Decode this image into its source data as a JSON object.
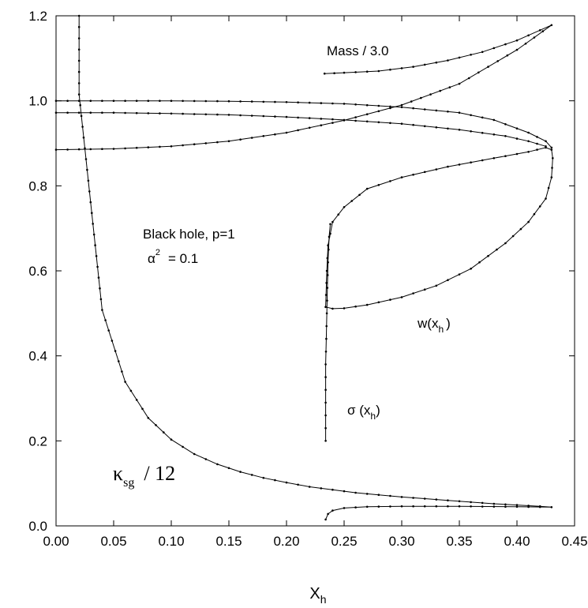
{
  "chart_data": {
    "type": "line",
    "title": "",
    "xlabel": "X",
    "xlabel_sub": "h",
    "ylabel": "",
    "xlim": [
      0.0,
      0.45
    ],
    "ylim": [
      0.0,
      1.2
    ],
    "xticks": [
      "0.00",
      "0.05",
      "0.10",
      "0.15",
      "0.20",
      "0.25",
      "0.30",
      "0.35",
      "0.40",
      "0.45"
    ],
    "yticks": [
      "0.0",
      "0.2",
      "0.4",
      "0.6",
      "0.8",
      "1.0",
      "1.2"
    ],
    "grid": false,
    "legend": "none",
    "annotations": {
      "mass": "Mass / 3.0",
      "black_hole": "Black hole, p=1",
      "alpha_sym": "α",
      "alpha_sup": "2",
      "alpha_val": "= 0.1",
      "w_main": "w(x",
      "w_sub": "h",
      "w_close": ")",
      "sigma_main": "σ (x",
      "sigma_sub": "h",
      "sigma_close": ")",
      "kappa_sym": "κ",
      "kappa_sub": "sg",
      "kappa_rest": "/ 12"
    },
    "series": [
      {
        "id": "mass",
        "points": [
          [
            0.233,
            1.064
          ],
          [
            0.25,
            1.066
          ],
          [
            0.28,
            1.07
          ],
          [
            0.31,
            1.08
          ],
          [
            0.34,
            1.095
          ],
          [
            0.37,
            1.115
          ],
          [
            0.4,
            1.142
          ],
          [
            0.43,
            1.178
          ],
          [
            0.4,
            1.12
          ],
          [
            0.35,
            1.04
          ],
          [
            0.3,
            0.99
          ],
          [
            0.25,
            0.954
          ],
          [
            0.2,
            0.925
          ],
          [
            0.15,
            0.905
          ],
          [
            0.1,
            0.893
          ],
          [
            0.05,
            0.887
          ],
          [
            0.0,
            0.885
          ]
        ]
      },
      {
        "id": "upper1",
        "points": [
          [
            0.0,
            1.0
          ],
          [
            0.05,
            1.0
          ],
          [
            0.1,
            1.0
          ],
          [
            0.15,
            0.999
          ],
          [
            0.2,
            0.997
          ],
          [
            0.25,
            0.993
          ],
          [
            0.3,
            0.985
          ],
          [
            0.35,
            0.972
          ],
          [
            0.38,
            0.955
          ],
          [
            0.41,
            0.925
          ],
          [
            0.425,
            0.905
          ],
          [
            0.43,
            0.89
          ]
        ]
      },
      {
        "id": "upper2",
        "points": [
          [
            0.0,
            0.972
          ],
          [
            0.05,
            0.972
          ],
          [
            0.1,
            0.97
          ],
          [
            0.15,
            0.967
          ],
          [
            0.2,
            0.962
          ],
          [
            0.25,
            0.955
          ],
          [
            0.3,
            0.946
          ],
          [
            0.35,
            0.932
          ],
          [
            0.39,
            0.917
          ],
          [
            0.41,
            0.905
          ],
          [
            0.425,
            0.893
          ]
        ]
      },
      {
        "id": "w",
        "points": [
          [
            0.234,
            0.515
          ],
          [
            0.24,
            0.511
          ],
          [
            0.25,
            0.512
          ],
          [
            0.27,
            0.52
          ],
          [
            0.3,
            0.538
          ],
          [
            0.33,
            0.565
          ],
          [
            0.36,
            0.605
          ],
          [
            0.39,
            0.665
          ],
          [
            0.41,
            0.715
          ],
          [
            0.425,
            0.77
          ],
          [
            0.43,
            0.82
          ],
          [
            0.431,
            0.865
          ],
          [
            0.43,
            0.885
          ],
          [
            0.425,
            0.89
          ],
          [
            0.41,
            0.88
          ],
          [
            0.38,
            0.865
          ],
          [
            0.34,
            0.845
          ],
          [
            0.3,
            0.82
          ],
          [
            0.27,
            0.793
          ],
          [
            0.25,
            0.75
          ],
          [
            0.24,
            0.715
          ],
          [
            0.236,
            0.66
          ],
          [
            0.235,
            0.6
          ],
          [
            0.234,
            0.515
          ]
        ]
      },
      {
        "id": "sigma",
        "points": [
          [
            0.234,
            0.2
          ],
          [
            0.234,
            0.26
          ],
          [
            0.234,
            0.32
          ],
          [
            0.234,
            0.38
          ],
          [
            0.2345,
            0.44
          ],
          [
            0.235,
            0.5
          ],
          [
            0.2355,
            0.56
          ],
          [
            0.236,
            0.62
          ],
          [
            0.237,
            0.68
          ],
          [
            0.238,
            0.71
          ]
        ]
      },
      {
        "id": "kappa",
        "points": [
          [
            0.02,
            1.2
          ],
          [
            0.02,
            1.015
          ],
          [
            0.04,
            0.508
          ],
          [
            0.06,
            0.339
          ],
          [
            0.08,
            0.254
          ],
          [
            0.1,
            0.203
          ],
          [
            0.12,
            0.169
          ],
          [
            0.14,
            0.145
          ],
          [
            0.16,
            0.127
          ],
          [
            0.18,
            0.113
          ],
          [
            0.2,
            0.102
          ],
          [
            0.22,
            0.092
          ],
          [
            0.24,
            0.085
          ],
          [
            0.26,
            0.078
          ],
          [
            0.28,
            0.073
          ],
          [
            0.3,
            0.068
          ],
          [
            0.32,
            0.064
          ],
          [
            0.34,
            0.06
          ],
          [
            0.36,
            0.056
          ],
          [
            0.38,
            0.052
          ],
          [
            0.4,
            0.049
          ],
          [
            0.42,
            0.046
          ],
          [
            0.43,
            0.044
          ],
          [
            0.4,
            0.045
          ],
          [
            0.35,
            0.046
          ],
          [
            0.3,
            0.046
          ],
          [
            0.27,
            0.045
          ],
          [
            0.25,
            0.042
          ],
          [
            0.24,
            0.036
          ],
          [
            0.236,
            0.028
          ],
          [
            0.234,
            0.015
          ]
        ]
      }
    ]
  }
}
